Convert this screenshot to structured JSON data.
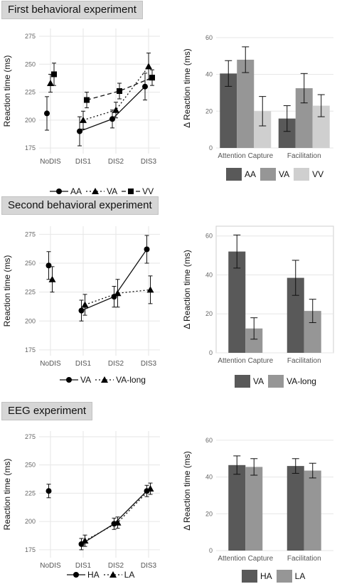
{
  "panels": [
    {
      "title": "First behavioral experiment",
      "line_legend": [
        {
          "label": "AA",
          "marker": "circle",
          "dash": "solid"
        },
        {
          "label": "VA",
          "marker": "triangle",
          "dash": "dotted"
        },
        {
          "label": "VV",
          "marker": "square",
          "dash": "dashed"
        }
      ],
      "bar_legend": [
        {
          "label": "AA",
          "color": "#595959"
        },
        {
          "label": "VA",
          "color": "#969696"
        },
        {
          "label": "VV",
          "color": "#cfcfcf"
        }
      ]
    },
    {
      "title": "Second behavioral experiment",
      "line_legend": [
        {
          "label": "VA",
          "marker": "circle",
          "dash": "solid"
        },
        {
          "label": "VA-long",
          "marker": "triangle",
          "dash": "dotted"
        }
      ],
      "bar_legend": [
        {
          "label": "VA",
          "color": "#595959"
        },
        {
          "label": "VA-long",
          "color": "#969696"
        }
      ]
    },
    {
      "title": "EEG experiment",
      "line_legend": [
        {
          "label": "HA",
          "marker": "circle",
          "dash": "solid"
        },
        {
          "label": "LA",
          "marker": "triangle",
          "dash": "dotted"
        }
      ],
      "bar_legend": [
        {
          "label": "HA",
          "color": "#595959"
        },
        {
          "label": "LA",
          "color": "#969696"
        }
      ]
    }
  ],
  "chart_data": [
    {
      "type": "line",
      "panel": "First behavioral experiment",
      "categories": [
        "NoDIS",
        "DIS1",
        "DIS2",
        "DIS3"
      ],
      "ylabel": "Reaction time (ms)",
      "ylim": [
        170,
        282
      ],
      "yticks": [
        175,
        200,
        225,
        250,
        275
      ],
      "grid": true,
      "legend": "bottom",
      "series": [
        {
          "name": "AA",
          "marker": "circle",
          "dash": "solid",
          "values": [
            206,
            190,
            201,
            230
          ],
          "err": [
            15,
            13,
            8,
            12
          ]
        },
        {
          "name": "VA",
          "marker": "triangle",
          "dash": "dotted",
          "values": [
            233,
            200,
            209,
            248
          ],
          "err": [
            8,
            8,
            7,
            12
          ]
        },
        {
          "name": "VV",
          "marker": "square",
          "dash": "dashed",
          "values": [
            241,
            218,
            226,
            238
          ],
          "err": [
            10,
            7,
            7,
            7
          ]
        }
      ]
    },
    {
      "type": "bar",
      "panel": "First behavioral experiment",
      "categories": [
        "Attention Capture",
        "Facilitation"
      ],
      "ylabel": "Δ Reaction time (ms)",
      "ylim": [
        0,
        65
      ],
      "yticks": [
        0,
        20,
        40,
        60
      ],
      "grid": true,
      "legend": "bottom",
      "series": [
        {
          "name": "AA",
          "color": "#595959",
          "values": [
            40.5,
            16
          ],
          "err": [
            7,
            7
          ]
        },
        {
          "name": "VA",
          "color": "#969696",
          "values": [
            48,
            32.5
          ],
          "err": [
            7,
            8
          ]
        },
        {
          "name": "VV",
          "color": "#cfcfcf",
          "values": [
            20,
            23
          ],
          "err": [
            8,
            6
          ]
        }
      ]
    },
    {
      "type": "line",
      "panel": "Second behavioral experiment",
      "categories": [
        "NoDIS",
        "DIS1",
        "DIS2",
        "DIS3"
      ],
      "ylabel": "Reaction time (ms)",
      "ylim": [
        170,
        282
      ],
      "yticks": [
        175,
        200,
        225,
        250,
        275
      ],
      "grid": true,
      "legend": "bottom",
      "series": [
        {
          "name": "VA",
          "marker": "circle",
          "dash": "solid",
          "values": [
            248,
            209,
            221,
            262
          ],
          "err": [
            12,
            9,
            9,
            12
          ]
        },
        {
          "name": "VA-long",
          "marker": "triangle",
          "dash": "dotted",
          "values": [
            236,
            214,
            224,
            227
          ],
          "err": [
            11,
            9,
            12,
            12
          ]
        }
      ]
    },
    {
      "type": "bar",
      "panel": "Second behavioral experiment",
      "categories": [
        "Attention Capture",
        "Facilitation"
      ],
      "ylabel": "Δ Reaction time (ms)",
      "ylim": [
        0,
        65
      ],
      "yticks": [
        0,
        20,
        40,
        60
      ],
      "grid": true,
      "legend": "bottom",
      "series": [
        {
          "name": "VA",
          "color": "#595959",
          "values": [
            52,
            38.5
          ],
          "err": [
            8.5,
            9
          ]
        },
        {
          "name": "VA-long",
          "color": "#969696",
          "values": [
            12.5,
            21.5
          ],
          "err": [
            5.5,
            6
          ]
        }
      ]
    },
    {
      "type": "line",
      "panel": "EEG experiment",
      "categories": [
        "NoDIS",
        "DIS1",
        "DIS2",
        "DIS3"
      ],
      "ylabel": "Reaction time (ms)",
      "ylim": [
        168,
        280
      ],
      "yticks": [
        175,
        200,
        225,
        250,
        275
      ],
      "grid": true,
      "legend": "bottom",
      "series": [
        {
          "name": "HA",
          "marker": "circle",
          "dash": "solid",
          "values": [
            227,
            180,
            198,
            227
          ],
          "err": [
            6,
            5,
            5,
            5
          ]
        },
        {
          "name": "LA",
          "marker": "triangle",
          "dash": "dotted",
          "values": [
            null,
            183,
            199,
            229
          ],
          "err": [
            null,
            5,
            5,
            5
          ]
        }
      ]
    },
    {
      "type": "bar",
      "panel": "EEG experiment",
      "categories": [
        "Attention Capture",
        "Facilitation"
      ],
      "ylabel": "Δ Reaction time (ms)",
      "ylim": [
        0,
        65
      ],
      "yticks": [
        0,
        20,
        40,
        60
      ],
      "grid": true,
      "legend": "bottom",
      "series": [
        {
          "name": "HA",
          "color": "#595959",
          "values": [
            46.5,
            46
          ],
          "err": [
            5,
            4
          ]
        },
        {
          "name": "LA",
          "color": "#969696",
          "values": [
            45.5,
            43.5
          ],
          "err": [
            4.5,
            4
          ]
        }
      ]
    }
  ]
}
